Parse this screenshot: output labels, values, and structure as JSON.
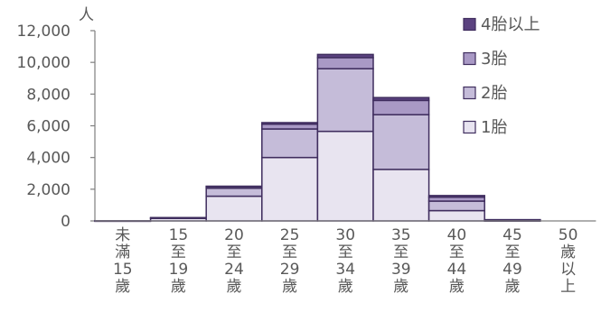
{
  "chart_data": {
    "type": "bar",
    "stacked": true,
    "unit_label": "人",
    "categories": [
      [
        "未",
        "滿",
        "15",
        "歲"
      ],
      [
        "15",
        "至",
        "19",
        "歲"
      ],
      [
        "20",
        "至",
        "24",
        "歲"
      ],
      [
        "25",
        "至",
        "29",
        "歲"
      ],
      [
        "30",
        "至",
        "34",
        "歲"
      ],
      [
        "35",
        "至",
        "39",
        "歲"
      ],
      [
        "40",
        "至",
        "44",
        "歲"
      ],
      [
        "45",
        "至",
        "49",
        "歲"
      ],
      [
        "50",
        "歲",
        "以",
        "上"
      ]
    ],
    "series": [
      {
        "name": "1胎",
        "color": "#e8e4f0",
        "values": [
          10,
          160,
          1560,
          4000,
          5650,
          3250,
          650,
          20,
          0
        ]
      },
      {
        "name": "2胎",
        "color": "#c5bcd9",
        "values": [
          0,
          40,
          500,
          1800,
          3950,
          3450,
          600,
          30,
          0
        ]
      },
      {
        "name": "3胎",
        "color": "#a999c5",
        "values": [
          0,
          10,
          100,
          300,
          700,
          900,
          250,
          20,
          0
        ]
      },
      {
        "name": "4胎以上",
        "color": "#5b4280",
        "values": [
          0,
          0,
          30,
          100,
          200,
          180,
          100,
          10,
          0
        ]
      }
    ],
    "legend_order": [
      "4胎以上",
      "3胎",
      "2胎",
      "1胎"
    ],
    "legend_position": "top-right",
    "ylim": [
      0,
      12000
    ],
    "yticks": [
      "0",
      "2,000",
      "4,000",
      "6,000",
      "8,000",
      "10,000",
      "12,000"
    ],
    "ytick_values": [
      0,
      2000,
      4000,
      6000,
      8000,
      10000,
      12000
    ],
    "grid": false
  }
}
